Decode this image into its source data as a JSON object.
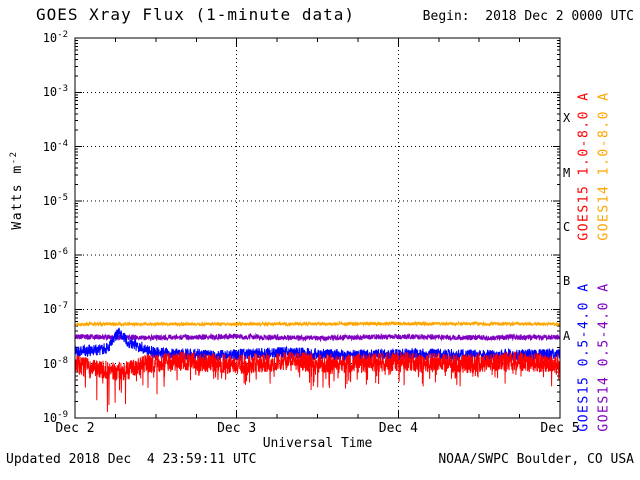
{
  "header": {
    "title": "GOES Xray Flux (1-minute data)",
    "begin": "Begin:  2018 Dec 2 0000 UTC"
  },
  "footer": {
    "updated": "Updated 2018 Dec  4 23:59:11 UTC",
    "source": "NOAA/SWPC Boulder, CO USA"
  },
  "chart_data": {
    "type": "line",
    "title": "GOES Xray Flux (1-minute data)",
    "xlabel": "Universal Time",
    "ylabel": "Watts m-2",
    "ylabel_parts": {
      "text": "Watts m",
      "sup": "-2"
    },
    "x_unit": "days since 2018 Dec 2 0000 UTC",
    "x_range_days": [
      0,
      3
    ],
    "x_ticks": [
      {
        "day": 0,
        "label": "Dec 2"
      },
      {
        "day": 1,
        "label": "Dec 3"
      },
      {
        "day": 2,
        "label": "Dec 4"
      },
      {
        "day": 3,
        "label": "Dec 5"
      }
    ],
    "y_log_range": [
      -9,
      -2
    ],
    "y_tick_exponents": [
      -2,
      -3,
      -4,
      -5,
      -6,
      -7,
      -8,
      -9
    ],
    "grid": {
      "on": true,
      "h_exponents": [
        -3,
        -4,
        -5,
        -6,
        -7,
        -8
      ],
      "v_days": [
        1,
        2
      ]
    },
    "flare_classes": [
      {
        "label": "X",
        "log_center": -3.5
      },
      {
        "label": "M",
        "log_center": -4.5
      },
      {
        "label": "C",
        "log_center": -5.5
      },
      {
        "label": "B",
        "log_center": -6.5
      },
      {
        "label": "A",
        "log_center": -7.5
      }
    ],
    "legend_position": "right",
    "series": [
      {
        "key": "goes15-long",
        "name": "GOES15 1.0-8.0 A",
        "color": "#ff0000",
        "mean_flux_wm2": 1e-08,
        "label_col": 0,
        "label_region": "upper",
        "z": 4,
        "seed": 7,
        "noise_log10": 0.18,
        "spikes_down": true,
        "baseline_log10": [
          [
            0,
            -8.0
          ],
          [
            0.1,
            -8.1
          ],
          [
            0.3,
            -8.15
          ],
          [
            0.45,
            -8.0
          ],
          [
            0.7,
            -7.95
          ],
          [
            1.0,
            -8.02
          ],
          [
            1.3,
            -7.95
          ],
          [
            1.6,
            -8.0
          ],
          [
            2.0,
            -7.96
          ],
          [
            2.4,
            -8.0
          ],
          [
            2.7,
            -7.95
          ],
          [
            3,
            -8.0
          ]
        ]
      },
      {
        "key": "goes14-long",
        "name": "GOES14 1.0-8.0 A",
        "color": "#ffa500",
        "mean_flux_wm2": 5.4e-08,
        "label_col": 1,
        "label_region": "upper",
        "z": 1,
        "seed": 13,
        "noise_log10": 0.03,
        "spikes_down": false,
        "baseline_log10": [
          [
            0,
            -7.27
          ],
          [
            1,
            -7.27
          ],
          [
            2,
            -7.26
          ],
          [
            3,
            -7.27
          ]
        ]
      },
      {
        "key": "goes15-short",
        "name": "GOES15 0.5-4.0 A",
        "color": "#0000ff",
        "mean_flux_wm2": 1.4e-08,
        "label_col": 0,
        "label_region": "lower",
        "z": 3,
        "seed": 21,
        "noise_log10": 0.11,
        "spikes_down": false,
        "baseline_log10": [
          [
            0,
            -7.78
          ],
          [
            0.2,
            -7.72
          ],
          [
            0.27,
            -7.42
          ],
          [
            0.34,
            -7.62
          ],
          [
            0.5,
            -7.8
          ],
          [
            0.9,
            -7.85
          ],
          [
            1.3,
            -7.8
          ],
          [
            1.7,
            -7.85
          ],
          [
            2.1,
            -7.82
          ],
          [
            2.5,
            -7.85
          ],
          [
            3,
            -7.83
          ]
        ]
      },
      {
        "key": "goes14-short",
        "name": "GOES14 0.5-4.0 A",
        "color": "#8000c0",
        "mean_flux_wm2": 3.1e-08,
        "label_col": 1,
        "label_region": "lower",
        "z": 2,
        "seed": 5,
        "noise_log10": 0.05,
        "spikes_down": false,
        "baseline_log10": [
          [
            0,
            -7.5
          ],
          [
            0.5,
            -7.52
          ],
          [
            1,
            -7.5
          ],
          [
            1.5,
            -7.53
          ],
          [
            2,
            -7.5
          ],
          [
            2.5,
            -7.52
          ],
          [
            3,
            -7.51
          ]
        ]
      }
    ]
  }
}
